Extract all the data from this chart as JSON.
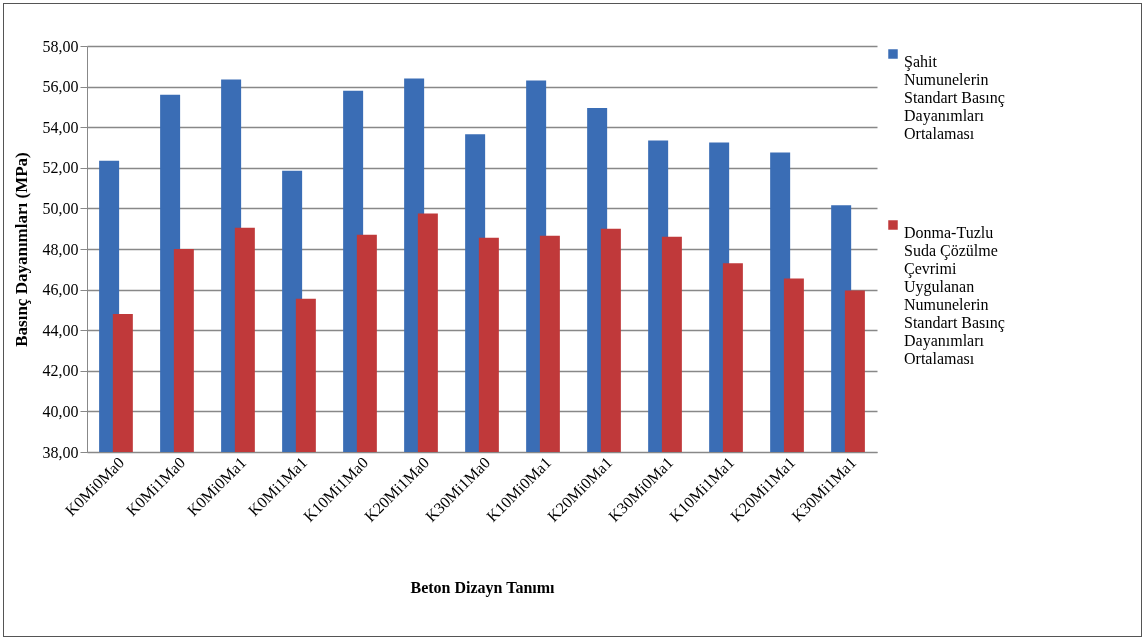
{
  "chart_data": {
    "type": "bar",
    "xlabel": "Beton Dizayn Tanımı",
    "ylabel": "Basınç Dayanımları (MPa)",
    "categories": [
      "K0Mi0Ma0",
      "K0Mi1Ma0",
      "K0Mi0Ma1",
      "K0Mi1Ma1",
      "K10Mi1Ma0",
      "K20Mi1Ma0",
      "K30Mi1Ma0",
      "K10Mi0Ma1",
      "K20Mi0Ma1",
      "K30Mi0Ma1",
      "K10Mi1Ma1",
      "K20Mi1Ma1",
      "K30Mi1Ma1"
    ],
    "series": [
      {
        "name": "Şahit Numunelerin Standart Basınç Dayanımları Ortalaması",
        "color": "#3a6db5",
        "values": [
          52.35,
          55.6,
          56.35,
          51.85,
          55.8,
          56.4,
          53.65,
          56.3,
          54.95,
          53.35,
          53.25,
          52.75,
          50.15
        ]
      },
      {
        "name": "Donma-Tuzlu Suda Çözülme Çevrimi Uygulanan Numunelerin Standart Basınç Dayanımları Ortalaması",
        "color": "#c0393a",
        "values": [
          44.8,
          48.0,
          49.05,
          45.55,
          48.7,
          49.75,
          48.55,
          48.65,
          49.0,
          48.6,
          47.3,
          46.55,
          45.95
        ]
      }
    ],
    "ylim": [
      38,
      58
    ],
    "yticks": [
      {
        "value": 38,
        "label": "38,00"
      },
      {
        "value": 40,
        "label": "40,00"
      },
      {
        "value": 42,
        "label": "42,00"
      },
      {
        "value": 44,
        "label": "44,00"
      },
      {
        "value": 46,
        "label": "46,00"
      },
      {
        "value": 48,
        "label": "48,00"
      },
      {
        "value": 50,
        "label": "50,00"
      },
      {
        "value": 52,
        "label": "52,00"
      },
      {
        "value": 54,
        "label": "54,00"
      },
      {
        "value": 56,
        "label": "56,00"
      },
      {
        "value": 58,
        "label": "58,00"
      }
    ],
    "grid": "y",
    "legend": "right"
  }
}
